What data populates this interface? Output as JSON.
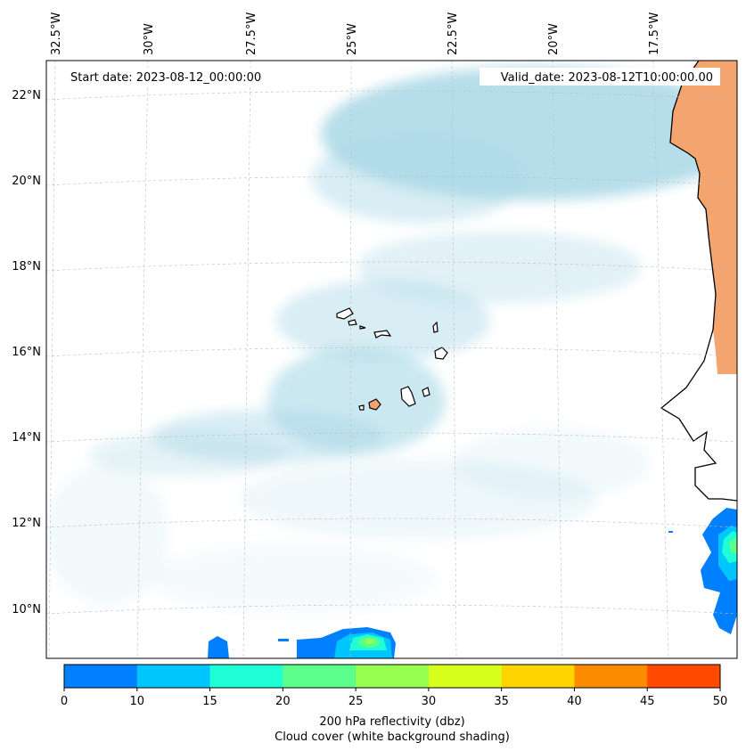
{
  "map": {
    "start_label": "Start date: 2023-08-12_00:00:00",
    "valid_label": "Valid_date: 2023-08-12T10:00:00.00",
    "lon_labels": [
      "32.5°W",
      "30°W",
      "27.5°W",
      "25°W",
      "22.5°W",
      "20°W",
      "17.5°W"
    ],
    "lat_labels": [
      "22°N",
      "20°N",
      "18°N",
      "16°N",
      "14°N",
      "12°N",
      "10°N"
    ],
    "gridlines": "dashed",
    "cloud_color": "#a9d8e6",
    "land_color": "#f4a46e"
  },
  "colorbar": {
    "ticks": [
      "0",
      "10",
      "15",
      "20",
      "25",
      "30",
      "35",
      "40",
      "45",
      "50"
    ],
    "colors": [
      "#0080ff",
      "#00c6ff",
      "#1effd6",
      "#5cff8c",
      "#96ff50",
      "#d6ff1e",
      "#ffd500",
      "#ff8c00",
      "#ff4a00"
    ],
    "label_line1": "200 hPa reflectivity (dbz)",
    "label_line2": "Cloud cover (white background shading)"
  }
}
